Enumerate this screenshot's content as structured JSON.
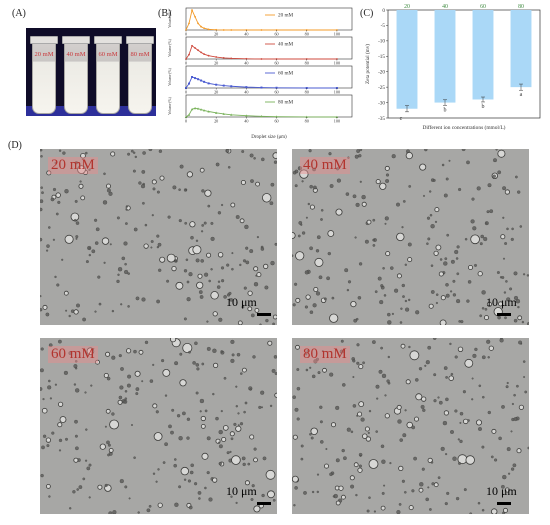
{
  "panels": {
    "a": "(A)",
    "b": "(B)",
    "c": "(C)",
    "d": "(D)"
  },
  "photo": {
    "tube_labels": [
      "20 mM",
      "40 mM",
      "60 mM",
      "80 mM"
    ]
  },
  "chart_data": [
    {
      "type": "line",
      "panel": "B",
      "xlabel": "Droplet size (μm)",
      "ylabel": "Volume (%)",
      "xlim": [
        0,
        110
      ],
      "xticks": [
        0,
        20,
        40,
        60,
        80,
        100
      ],
      "series": [
        {
          "name": "20 mM",
          "color": "#f39b2a",
          "marker": "circle",
          "x": [
            0,
            2,
            4,
            6,
            8,
            10,
            12,
            15,
            20,
            25,
            30,
            40,
            50,
            60,
            80,
            100
          ],
          "y": [
            0,
            3,
            9,
            6,
            3,
            1.5,
            0.8,
            0.3,
            0.1,
            0,
            0,
            0,
            0,
            0,
            0,
            0
          ]
        },
        {
          "name": "40 mM",
          "color": "#cf4a3e",
          "marker": "circle",
          "x": [
            0,
            2,
            4,
            6,
            8,
            10,
            12,
            15,
            20,
            25,
            30,
            40,
            50,
            60,
            80,
            100
          ],
          "y": [
            0,
            2,
            6,
            5,
            4,
            3,
            2.2,
            1.5,
            0.9,
            0.5,
            0.3,
            0.1,
            0,
            0,
            0,
            0
          ]
        },
        {
          "name": "60 mM",
          "color": "#4a5bd1",
          "marker": "square",
          "x": [
            0,
            2,
            4,
            6,
            8,
            10,
            12,
            15,
            20,
            25,
            30,
            40,
            50,
            60,
            80,
            100
          ],
          "y": [
            0,
            2,
            5,
            4.5,
            4,
            3.4,
            2.8,
            2.1,
            1.5,
            1.1,
            0.8,
            0.4,
            0.2,
            0.1,
            0,
            0
          ]
        },
        {
          "name": "80 mM",
          "color": "#79b25a",
          "marker": "triangle",
          "x": [
            0,
            2,
            4,
            6,
            8,
            10,
            12,
            15,
            20,
            25,
            30,
            40,
            50,
            60,
            80,
            100
          ],
          "y": [
            0,
            1,
            3.5,
            4,
            3.8,
            3.4,
            3,
            2.5,
            1.9,
            1.4,
            1,
            0.6,
            0.3,
            0.15,
            0.05,
            0
          ]
        }
      ]
    },
    {
      "type": "bar",
      "panel": "C",
      "categories": [
        "20",
        "40",
        "60",
        "80"
      ],
      "values": [
        -32,
        -30,
        -29,
        -25
      ],
      "errors": [
        1.0,
        0.9,
        0.8,
        1.0
      ],
      "significance": [
        "c",
        "b",
        "b",
        "a"
      ],
      "xlabel": "Different ion concentrations (mmol/L)",
      "ylabel": "Zeta potential (mv)",
      "ylim": [
        -35,
        0
      ],
      "yticks": [
        0,
        -5,
        -10,
        -15,
        -20,
        -25,
        -30,
        -35
      ],
      "bar_color": "#aad8f7"
    }
  ],
  "micrographs": [
    {
      "label": "20 mM",
      "scale": "10 μm"
    },
    {
      "label": "40 mM",
      "scale": "10 μm"
    },
    {
      "label": "60 mM",
      "scale": "10 μm"
    },
    {
      "label": "80 mM",
      "scale": "10 μm"
    }
  ]
}
